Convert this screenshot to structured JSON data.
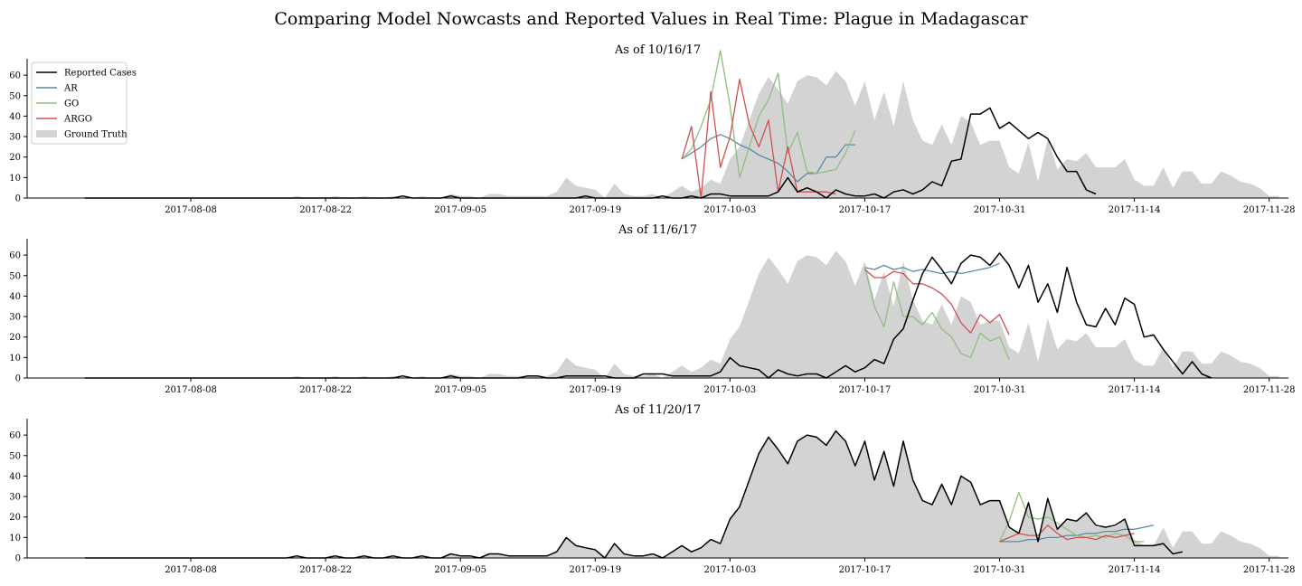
{
  "figure": {
    "title": "Comparing Model Nowcasts and Reported Values in Real Time: Plague in Madagascar"
  },
  "legend": {
    "entries": [
      "Reported Cases",
      "AR",
      "GO",
      "ARGO",
      "Ground Truth"
    ]
  },
  "colors": {
    "reported": "#000000",
    "ar": "#5b8ba0",
    "go": "#8fbf7f",
    "argo": "#d05050",
    "ground_truth": "#d3d3d3"
  },
  "chart_data": [
    {
      "type": "line",
      "title": "As of 10/16/17",
      "x_start": "2017-07-28",
      "x_step_days": 1,
      "xlim": [
        "2017-07-22",
        "2017-11-30"
      ],
      "ylim": [
        0,
        68
      ],
      "yticks": [
        0,
        10,
        20,
        30,
        40,
        50,
        60
      ],
      "xticks": [
        "2017-08-08",
        "2017-08-22",
        "2017-09-05",
        "2017-09-19",
        "2017-10-03",
        "2017-10-17",
        "2017-10-31",
        "2017-11-14",
        "2017-11-28"
      ],
      "ground_truth": [
        0,
        0,
        0,
        0,
        0,
        0,
        0,
        0,
        0,
        0,
        0,
        0,
        0,
        0,
        0,
        0,
        0,
        0,
        0,
        0,
        0,
        0,
        1,
        0,
        0,
        0,
        1,
        0,
        0,
        1,
        0,
        0,
        1,
        0,
        0,
        1,
        0,
        0,
        2,
        1,
        1,
        0,
        2,
        2,
        1,
        1,
        1,
        1,
        1,
        3,
        10,
        6,
        5,
        4,
        0,
        7,
        2,
        1,
        1,
        2,
        0,
        3,
        6,
        3,
        5,
        9,
        7,
        19,
        25,
        38,
        51,
        59,
        53,
        46,
        57,
        60,
        59,
        55,
        62,
        57,
        45,
        57,
        38,
        52,
        35,
        57,
        38,
        28,
        26,
        36,
        26,
        40,
        37,
        26,
        28,
        28,
        15,
        12,
        27,
        8,
        29,
        14,
        19,
        18,
        22,
        15,
        15,
        15,
        19,
        9,
        6,
        6,
        15,
        5,
        13,
        13,
        7,
        7,
        13,
        11,
        8,
        7,
        5,
        1,
        1
      ],
      "series": [
        {
          "name": "Reported Cases",
          "x_start": "2017-07-28",
          "values": [
            0,
            0,
            0,
            0,
            0,
            0,
            0,
            0,
            0,
            0,
            0,
            0,
            0,
            0,
            0,
            0,
            0,
            0,
            0,
            0,
            0,
            0,
            0,
            0,
            0,
            0,
            0,
            0,
            0,
            0,
            0,
            0,
            0,
            1,
            0,
            0,
            0,
            0,
            1,
            0,
            0,
            0,
            0,
            0,
            0,
            0,
            0,
            0,
            0,
            0,
            0,
            0,
            1,
            0,
            0,
            0,
            0,
            0,
            0,
            0,
            1,
            0,
            0,
            1,
            0,
            2,
            2,
            1,
            1,
            1,
            1,
            1,
            3,
            10,
            3,
            5,
            3,
            0,
            4,
            2,
            1,
            1,
            2,
            0,
            3,
            4,
            2,
            4,
            8,
            6,
            18,
            19,
            41,
            41,
            44,
            34,
            37,
            33,
            29,
            32,
            29,
            20,
            13,
            13,
            4,
            2
          ]
        },
        {
          "name": "AR",
          "x_start": "2017-09-28",
          "values": [
            19,
            22,
            25,
            29,
            31,
            29,
            26,
            24,
            21,
            19,
            17,
            13,
            8,
            12,
            12,
            20,
            20,
            26,
            26
          ]
        },
        {
          "name": "GO",
          "x_start": "2017-09-28",
          "values": [
            19,
            24,
            35,
            48,
            72,
            45,
            10,
            25,
            40,
            48,
            61,
            22,
            32,
            13,
            12,
            13,
            14,
            22,
            33
          ]
        },
        {
          "name": "ARGO",
          "x_start": "2017-09-28",
          "values": [
            19,
            35,
            0,
            52,
            15,
            30,
            58,
            36,
            25,
            38,
            3,
            25,
            3,
            3,
            3,
            3,
            2
          ]
        }
      ]
    },
    {
      "type": "line",
      "title": "As of 11/6/17",
      "x_start": "2017-07-28",
      "x_step_days": 1,
      "xlim": [
        "2017-07-22",
        "2017-11-30"
      ],
      "ylim": [
        0,
        68
      ],
      "yticks": [
        0,
        10,
        20,
        30,
        40,
        50,
        60
      ],
      "xticks": [
        "2017-08-08",
        "2017-08-22",
        "2017-09-05",
        "2017-09-19",
        "2017-10-03",
        "2017-10-17",
        "2017-10-31",
        "2017-11-14",
        "2017-11-28"
      ],
      "ground_truth": [
        0,
        0,
        0,
        0,
        0,
        0,
        0,
        0,
        0,
        0,
        0,
        0,
        0,
        0,
        0,
        0,
        0,
        0,
        0,
        0,
        0,
        0,
        1,
        0,
        0,
        0,
        1,
        0,
        0,
        1,
        0,
        0,
        1,
        0,
        0,
        1,
        0,
        0,
        2,
        1,
        1,
        0,
        2,
        2,
        1,
        1,
        1,
        1,
        1,
        3,
        10,
        6,
        5,
        4,
        0,
        7,
        2,
        1,
        1,
        2,
        0,
        3,
        6,
        3,
        5,
        9,
        7,
        19,
        25,
        38,
        51,
        59,
        53,
        46,
        57,
        60,
        59,
        55,
        62,
        57,
        45,
        57,
        38,
        52,
        35,
        57,
        38,
        28,
        26,
        36,
        26,
        40,
        37,
        26,
        28,
        28,
        15,
        12,
        27,
        8,
        29,
        14,
        19,
        18,
        22,
        15,
        15,
        15,
        19,
        9,
        6,
        6,
        15,
        5,
        13,
        13,
        7,
        7,
        13,
        11,
        8,
        7,
        5,
        1,
        1
      ],
      "series": [
        {
          "name": "Reported Cases",
          "x_start": "2017-07-28",
          "values": [
            0,
            0,
            0,
            0,
            0,
            0,
            0,
            0,
            0,
            0,
            0,
            0,
            0,
            0,
            0,
            0,
            0,
            0,
            0,
            0,
            0,
            0,
            0,
            0,
            0,
            0,
            0,
            0,
            0,
            0,
            0,
            0,
            0,
            1,
            0,
            0,
            0,
            0,
            1,
            0,
            0,
            0,
            0,
            0,
            0,
            0,
            1,
            1,
            0,
            0,
            1,
            1,
            1,
            1,
            1,
            0,
            0,
            0,
            2,
            2,
            2,
            1,
            1,
            1,
            1,
            1,
            3,
            10,
            6,
            5,
            4,
            0,
            4,
            2,
            1,
            2,
            2,
            0,
            3,
            6,
            3,
            5,
            9,
            7,
            19,
            24,
            38,
            51,
            59,
            53,
            46,
            56,
            60,
            59,
            55,
            61,
            55,
            44,
            55,
            37,
            46,
            32,
            54,
            37,
            26,
            25,
            34,
            26,
            39,
            36,
            20,
            21,
            14,
            8,
            2,
            8,
            2,
            0
          ]
        },
        {
          "name": "AR",
          "x_start": "2017-10-17",
          "values": [
            54,
            53,
            55,
            53,
            54,
            52,
            53,
            52,
            51,
            52,
            51,
            52,
            53,
            54,
            56
          ]
        },
        {
          "name": "GO",
          "x_start": "2017-10-17",
          "values": [
            54,
            35,
            25,
            47,
            30,
            30,
            26,
            32,
            24,
            20,
            12,
            10,
            22,
            18,
            20,
            9
          ]
        },
        {
          "name": "ARGO",
          "x_start": "2017-10-17",
          "values": [
            53,
            49,
            49,
            52,
            51,
            46,
            46,
            44,
            41,
            36,
            27,
            22,
            31,
            27,
            31,
            21
          ]
        }
      ]
    },
    {
      "type": "line",
      "title": "As of 11/20/17",
      "x_start": "2017-07-28",
      "x_step_days": 1,
      "xlim": [
        "2017-07-22",
        "2017-11-30"
      ],
      "ylim": [
        0,
        68
      ],
      "yticks": [
        0,
        10,
        20,
        30,
        40,
        50,
        60
      ],
      "xticks": [
        "2017-08-08",
        "2017-08-22",
        "2017-09-05",
        "2017-09-19",
        "2017-10-03",
        "2017-10-17",
        "2017-10-31",
        "2017-11-14",
        "2017-11-28"
      ],
      "ground_truth": [
        0,
        0,
        0,
        0,
        0,
        0,
        0,
        0,
        0,
        0,
        0,
        0,
        0,
        0,
        0,
        0,
        0,
        0,
        0,
        0,
        0,
        0,
        1,
        0,
        0,
        0,
        1,
        0,
        0,
        1,
        0,
        0,
        1,
        0,
        0,
        1,
        0,
        0,
        2,
        1,
        1,
        0,
        2,
        2,
        1,
        1,
        1,
        1,
        1,
        3,
        10,
        6,
        5,
        4,
        0,
        7,
        2,
        1,
        1,
        2,
        0,
        3,
        6,
        3,
        5,
        9,
        7,
        19,
        25,
        38,
        51,
        59,
        53,
        46,
        57,
        60,
        59,
        55,
        62,
        57,
        45,
        57,
        38,
        52,
        35,
        57,
        38,
        28,
        26,
        36,
        26,
        40,
        37,
        26,
        28,
        28,
        15,
        12,
        27,
        8,
        29,
        14,
        19,
        18,
        22,
        15,
        15,
        15,
        19,
        9,
        6,
        6,
        15,
        5,
        13,
        13,
        7,
        7,
        13,
        11,
        8,
        7,
        5,
        1,
        1
      ],
      "series": [
        {
          "name": "Reported Cases",
          "x_start": "2017-07-28",
          "values": [
            0,
            0,
            0,
            0,
            0,
            0,
            0,
            0,
            0,
            0,
            0,
            0,
            0,
            0,
            0,
            0,
            0,
            0,
            0,
            0,
            0,
            0,
            1,
            0,
            0,
            0,
            1,
            0,
            0,
            1,
            0,
            0,
            1,
            0,
            0,
            1,
            0,
            0,
            2,
            1,
            1,
            0,
            2,
            2,
            1,
            1,
            1,
            1,
            1,
            3,
            10,
            6,
            5,
            4,
            0,
            7,
            2,
            1,
            1,
            2,
            0,
            3,
            6,
            3,
            5,
            9,
            7,
            19,
            25,
            38,
            51,
            59,
            53,
            46,
            57,
            60,
            59,
            55,
            62,
            57,
            45,
            57,
            38,
            52,
            35,
            57,
            38,
            28,
            26,
            36,
            26,
            40,
            37,
            26,
            28,
            28,
            15,
            12,
            27,
            8,
            29,
            14,
            19,
            18,
            22,
            16,
            15,
            16,
            19,
            6,
            6,
            6,
            7,
            2,
            3
          ]
        },
        {
          "name": "AR",
          "x_start": "2017-10-31",
          "values": [
            8,
            8,
            8,
            9,
            9,
            10,
            10,
            11,
            11,
            12,
            12,
            13,
            13,
            14,
            14,
            15,
            16
          ]
        },
        {
          "name": "GO",
          "x_start": "2017-10-31",
          "values": [
            8,
            18,
            32,
            20,
            19,
            20,
            17,
            14,
            11,
            10,
            11,
            10,
            12,
            11,
            8,
            8
          ]
        },
        {
          "name": "ARGO",
          "x_start": "2017-10-31",
          "values": [
            8,
            10,
            12,
            11,
            11,
            16,
            12,
            9,
            10,
            10,
            9,
            11,
            10,
            11,
            12
          ]
        }
      ]
    }
  ]
}
